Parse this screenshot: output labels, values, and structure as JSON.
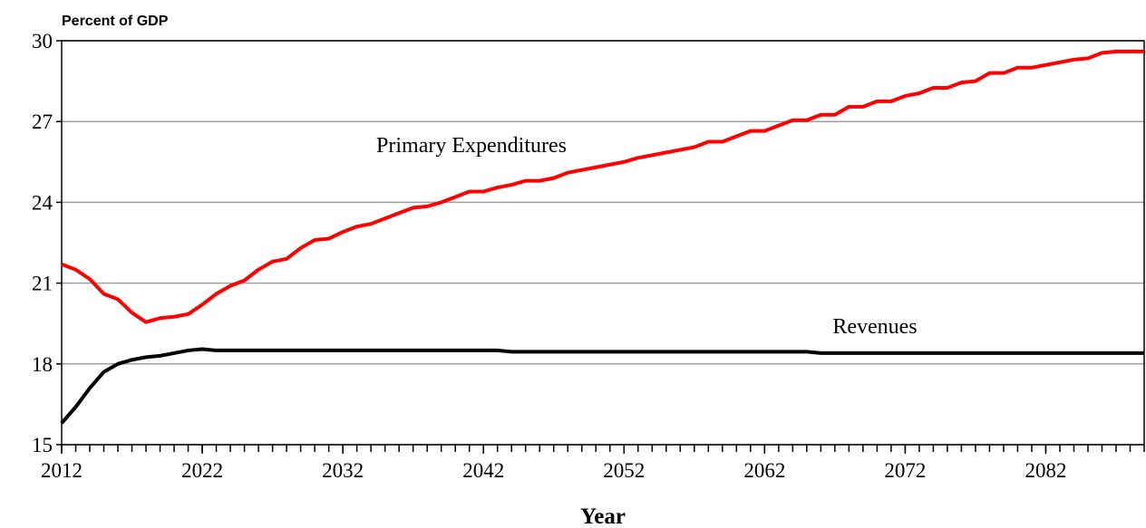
{
  "chart_data": {
    "type": "line",
    "y_label": "Percent of GDP",
    "x_label": "Year",
    "x": [
      2012,
      2013,
      2014,
      2015,
      2016,
      2017,
      2018,
      2019,
      2020,
      2021,
      2022,
      2023,
      2024,
      2025,
      2026,
      2027,
      2028,
      2029,
      2030,
      2031,
      2032,
      2033,
      2034,
      2035,
      2036,
      2037,
      2038,
      2039,
      2040,
      2041,
      2042,
      2043,
      2044,
      2045,
      2046,
      2047,
      2048,
      2049,
      2050,
      2051,
      2052,
      2053,
      2054,
      2055,
      2056,
      2057,
      2058,
      2059,
      2060,
      2061,
      2062,
      2063,
      2064,
      2065,
      2066,
      2067,
      2068,
      2069,
      2070,
      2071,
      2072,
      2073,
      2074,
      2075,
      2076,
      2077,
      2078,
      2079,
      2080,
      2081,
      2082,
      2083,
      2084,
      2085,
      2086,
      2087,
      2088,
      2089
    ],
    "series": [
      {
        "name": "Primary Expenditures",
        "color": "#ff0000",
        "values": [
          21.7,
          21.5,
          21.15,
          20.6,
          20.4,
          19.9,
          19.55,
          19.7,
          19.75,
          19.85,
          20.2,
          20.6,
          20.9,
          21.1,
          21.5,
          21.8,
          21.9,
          22.3,
          22.6,
          22.65,
          22.9,
          23.1,
          23.2,
          23.4,
          23.6,
          23.8,
          23.85,
          24.0,
          24.2,
          24.4,
          24.4,
          24.55,
          24.65,
          24.8,
          24.8,
          24.9,
          25.1,
          25.2,
          25.3,
          25.4,
          25.5,
          25.65,
          25.75,
          25.85,
          25.95,
          26.05,
          26.25,
          26.25,
          26.45,
          26.65,
          26.65,
          26.85,
          27.05,
          27.05,
          27.25,
          27.25,
          27.55,
          27.55,
          27.75,
          27.75,
          27.95,
          28.05,
          28.25,
          28.25,
          28.45,
          28.5,
          28.8,
          28.8,
          29.0,
          29.0,
          29.1,
          29.2,
          29.3,
          29.35,
          29.55,
          29.6,
          29.6,
          29.6
        ]
      },
      {
        "name": "Revenues",
        "color": "#000000",
        "values": [
          15.8,
          16.4,
          17.1,
          17.7,
          18.0,
          18.15,
          18.25,
          18.3,
          18.4,
          18.5,
          18.55,
          18.5,
          18.5,
          18.5,
          18.5,
          18.5,
          18.5,
          18.5,
          18.5,
          18.5,
          18.5,
          18.5,
          18.5,
          18.5,
          18.5,
          18.5,
          18.5,
          18.5,
          18.5,
          18.5,
          18.5,
          18.5,
          18.45,
          18.45,
          18.45,
          18.45,
          18.45,
          18.45,
          18.45,
          18.45,
          18.45,
          18.45,
          18.45,
          18.45,
          18.45,
          18.45,
          18.45,
          18.45,
          18.45,
          18.45,
          18.45,
          18.45,
          18.45,
          18.45,
          18.4,
          18.4,
          18.4,
          18.4,
          18.4,
          18.4,
          18.4,
          18.4,
          18.4,
          18.4,
          18.4,
          18.4,
          18.4,
          18.4,
          18.4,
          18.4,
          18.4,
          18.4,
          18.4,
          18.4,
          18.4,
          18.4,
          18.4,
          18.4
        ]
      }
    ],
    "xlim": [
      2012,
      2089
    ],
    "xticks": [
      2012,
      2022,
      2032,
      2042,
      2052,
      2062,
      2072,
      2082
    ],
    "ylim": [
      15,
      30
    ],
    "yticks": [
      15,
      18,
      21,
      24,
      27,
      30
    ],
    "grid": true
  }
}
